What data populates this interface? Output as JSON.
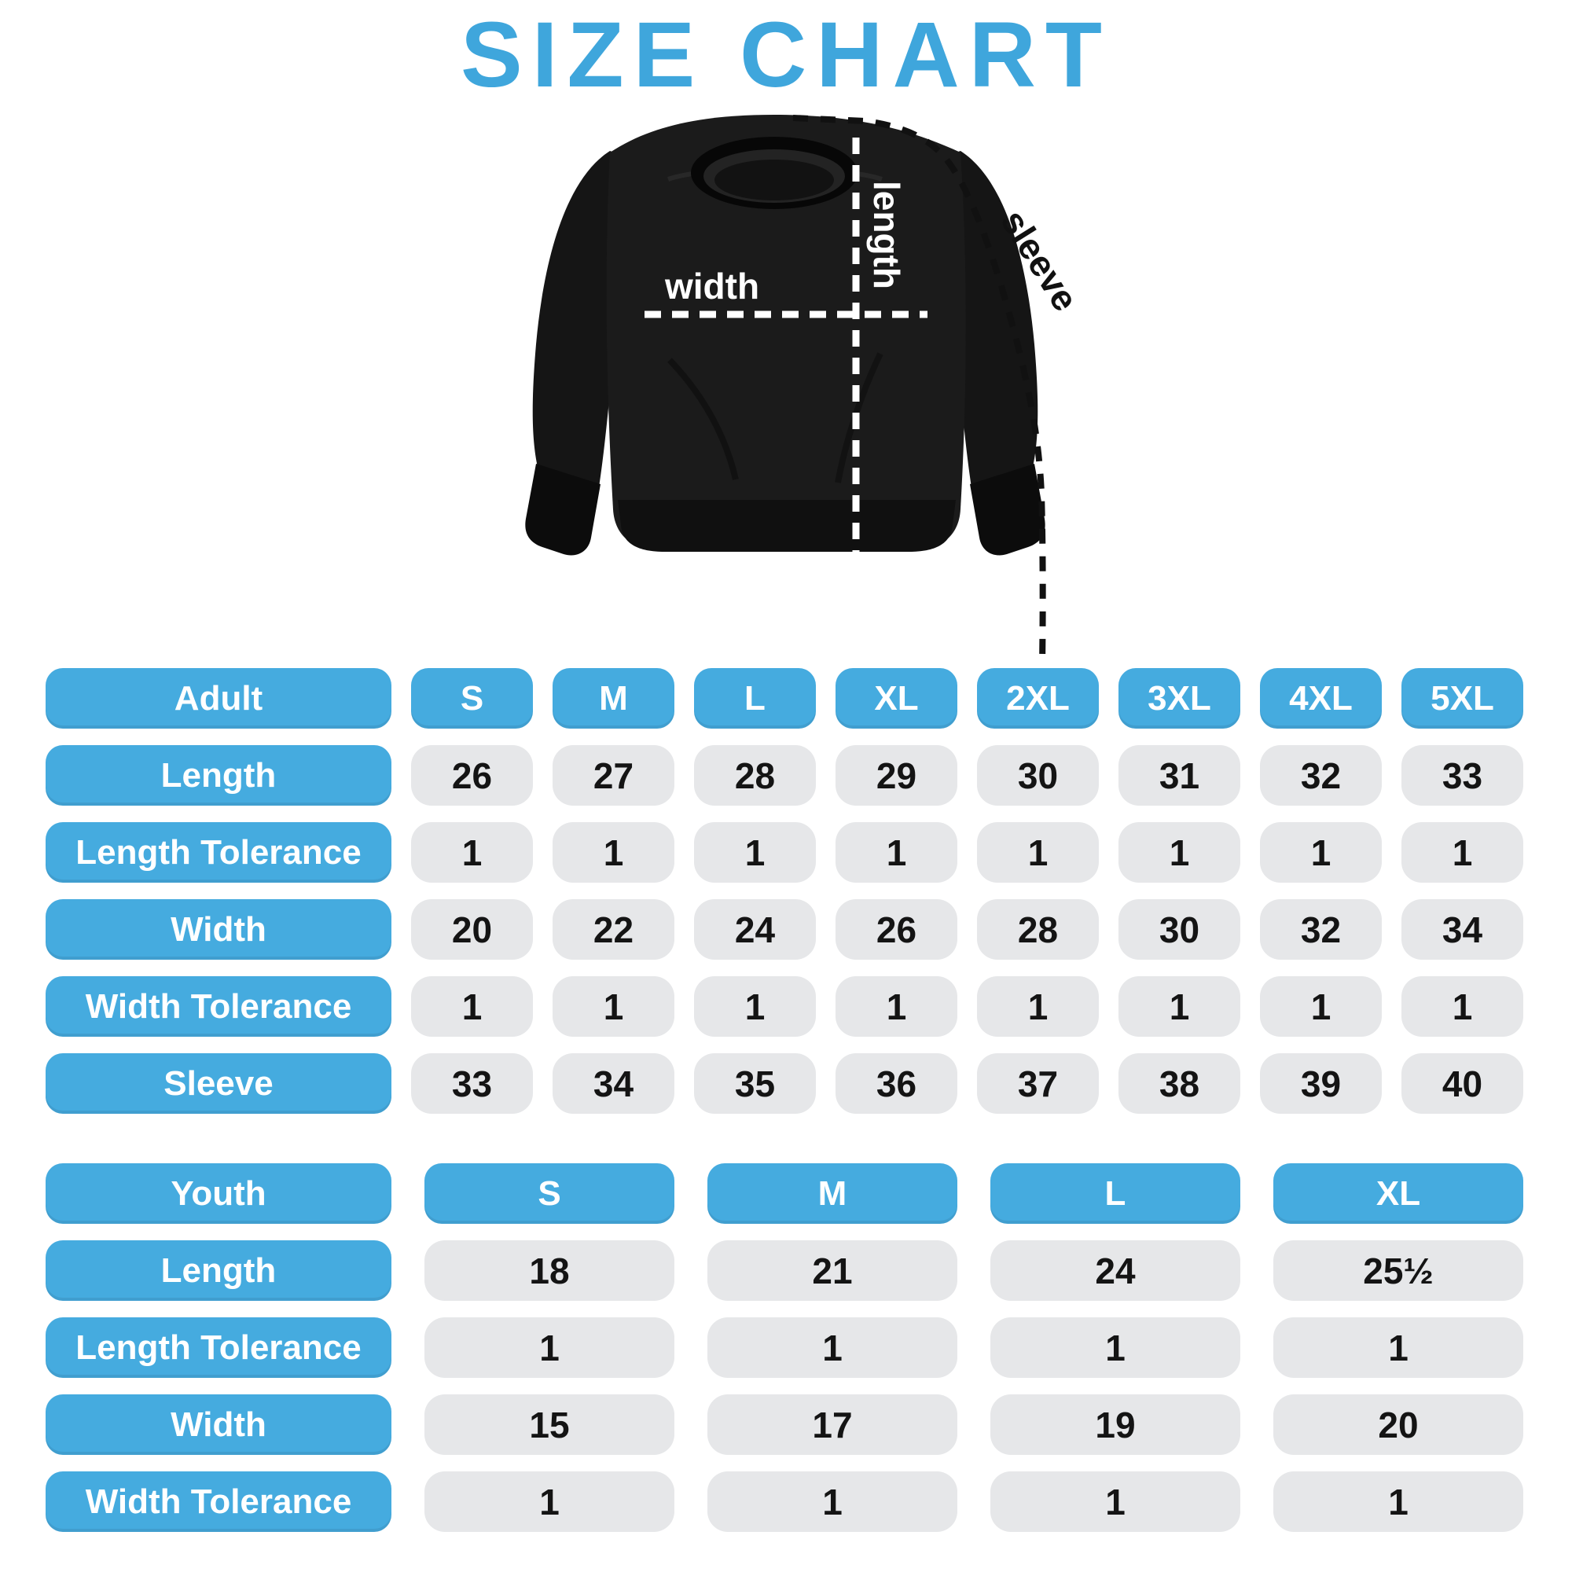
{
  "title": "SIZE CHART",
  "colors": {
    "title_blue": "#3FA6DC",
    "header_blue": "#45ABDF",
    "cell_gray": "#E6E7E9",
    "value_text": "#141414",
    "header_text": "#FFFFFF",
    "garment_black": "#1B1B1B",
    "background": "#FFFFFF"
  },
  "diagram": {
    "length_label": "length",
    "width_label": "width",
    "sleeve_label": "sleeve"
  },
  "chart_data": [
    {
      "type": "table",
      "group_label": "Adult",
      "sizes": [
        "S",
        "M",
        "L",
        "XL",
        "2XL",
        "3XL",
        "4XL",
        "5XL"
      ],
      "rows": [
        {
          "label": "Length",
          "values": [
            "26",
            "27",
            "28",
            "29",
            "30",
            "31",
            "32",
            "33"
          ]
        },
        {
          "label": "Length Tolerance",
          "values": [
            "1",
            "1",
            "1",
            "1",
            "1",
            "1",
            "1",
            "1"
          ]
        },
        {
          "label": "Width",
          "values": [
            "20",
            "22",
            "24",
            "26",
            "28",
            "30",
            "32",
            "34"
          ]
        },
        {
          "label": "Width Tolerance",
          "values": [
            "1",
            "1",
            "1",
            "1",
            "1",
            "1",
            "1",
            "1"
          ]
        },
        {
          "label": "Sleeve",
          "values": [
            "33",
            "34",
            "35",
            "36",
            "37",
            "38",
            "39",
            "40"
          ]
        }
      ]
    },
    {
      "type": "table",
      "group_label": "Youth",
      "sizes": [
        "S",
        "M",
        "L",
        "XL"
      ],
      "rows": [
        {
          "label": "Length",
          "values": [
            "18",
            "21",
            "24",
            "25½"
          ]
        },
        {
          "label": "Length Tolerance",
          "values": [
            "1",
            "1",
            "1",
            "1"
          ]
        },
        {
          "label": "Width",
          "values": [
            "15",
            "17",
            "19",
            "20"
          ]
        },
        {
          "label": "Width Tolerance",
          "values": [
            "1",
            "1",
            "1",
            "1"
          ]
        }
      ]
    }
  ]
}
